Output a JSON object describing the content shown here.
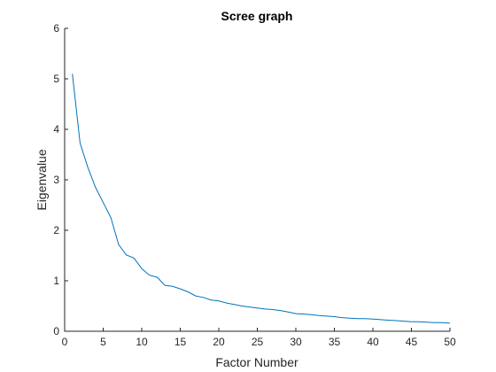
{
  "chart_data": {
    "type": "line",
    "title": "Scree graph",
    "xlabel": "Factor Number",
    "ylabel": "Eigenvalue",
    "xlim": [
      0,
      50
    ],
    "ylim": [
      0,
      6
    ],
    "xticks": [
      0,
      5,
      10,
      15,
      20,
      25,
      30,
      35,
      40,
      45,
      50
    ],
    "yticks": [
      0,
      1,
      2,
      3,
      4,
      5,
      6
    ],
    "grid": false,
    "line_color": "#0072BD",
    "axis_color": "#262626",
    "series": [
      {
        "x": [
          1,
          2,
          3,
          4,
          5,
          6,
          7,
          8,
          9,
          10,
          11,
          12,
          13,
          14,
          15,
          16,
          17,
          18,
          19,
          20,
          21,
          22,
          23,
          24,
          25,
          26,
          27,
          28,
          29,
          30,
          31,
          32,
          33,
          34,
          35,
          36,
          37,
          38,
          39,
          40,
          41,
          42,
          43,
          44,
          45,
          46,
          47,
          48,
          49,
          50
        ],
        "values": [
          5.1,
          3.73,
          3.25,
          2.85,
          2.55,
          2.25,
          1.72,
          1.51,
          1.45,
          1.24,
          1.11,
          1.07,
          0.91,
          0.89,
          0.84,
          0.78,
          0.7,
          0.67,
          0.62,
          0.6,
          0.56,
          0.53,
          0.5,
          0.48,
          0.46,
          0.44,
          0.43,
          0.41,
          0.38,
          0.35,
          0.34,
          0.33,
          0.31,
          0.3,
          0.29,
          0.27,
          0.26,
          0.25,
          0.25,
          0.24,
          0.23,
          0.22,
          0.21,
          0.2,
          0.19,
          0.19,
          0.18,
          0.17,
          0.17,
          0.16
        ]
      }
    ]
  }
}
